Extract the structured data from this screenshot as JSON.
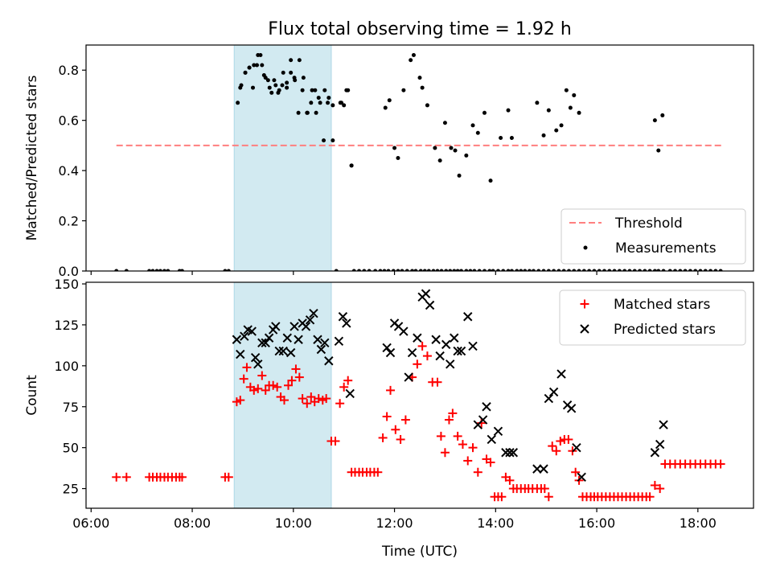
{
  "figure": {
    "title": "Flux total observing time = 1.92 h"
  },
  "chart_data": [
    {
      "type": "scatter",
      "panel": "top",
      "xlabel": "",
      "ylabel": "Matched/Predicted stars",
      "xlim": [
        5.9,
        19.1
      ],
      "ylim": [
        0,
        0.9
      ],
      "yticks": [
        0.0,
        0.2,
        0.4,
        0.6,
        0.8
      ],
      "ytick_labels": [
        "0.0",
        "0.2",
        "0.4",
        "0.6",
        "0.8"
      ],
      "xticks": [
        6,
        8,
        10,
        12,
        14,
        16,
        18
      ],
      "highlight_span": {
        "x0": 8.83,
        "x1": 10.75,
        "color": "#add8e6"
      },
      "threshold": {
        "name": "Threshold",
        "y": 0.5,
        "x0": 6.5,
        "x1": 18.5,
        "color": "#ff7f7f"
      },
      "legend": {
        "placement": "lower-right",
        "entries": [
          "Threshold",
          "Measurements"
        ]
      },
      "series": [
        {
          "name": "Measurements",
          "marker": "dot",
          "color": "#000000",
          "x": [
            6.5,
            6.7,
            7.15,
            7.22,
            7.3,
            7.37,
            7.45,
            7.52,
            7.75,
            7.8,
            8.65,
            8.72,
            8.9,
            8.97,
            9.05,
            9.13,
            9.22,
            9.3,
            9.38,
            9.45,
            9.53,
            9.62,
            9.7,
            9.78,
            9.87,
            9.95,
            10.03,
            10.12,
            10.2,
            10.28,
            10.37,
            10.45,
            10.53,
            10.62,
            10.7,
            10.78,
            10.85,
            10.93,
            11.0,
            11.08,
            11.15,
            11.2,
            11.3,
            11.4,
            11.5,
            11.62,
            11.72,
            11.8,
            11.88,
            11.98,
            12.07,
            12.15,
            12.25,
            12.35,
            12.42,
            12.52,
            12.6,
            12.68,
            12.77,
            12.85,
            12.93,
            13.02,
            13.1,
            13.18,
            13.25,
            13.32,
            13.42,
            13.5,
            13.58,
            13.68,
            13.78,
            13.88,
            13.95,
            14.05,
            14.15,
            14.25,
            14.32,
            14.42,
            14.5,
            14.58,
            14.67,
            14.75,
            14.85,
            14.95,
            15.05,
            15.15,
            15.25,
            15.35,
            15.45,
            15.55,
            15.65,
            15.75,
            15.85,
            15.95,
            16.05,
            16.15,
            16.25,
            16.35,
            16.45,
            16.55,
            16.65,
            16.75,
            16.85,
            16.95,
            17.05,
            17.15,
            17.22,
            17.32,
            17.45,
            17.55,
            17.65,
            17.75,
            17.85,
            17.95,
            18.05,
            18.15,
            18.25,
            18.35,
            18.45,
            8.95,
            9.05,
            9.13,
            9.2,
            9.28,
            9.35,
            9.42,
            9.5,
            9.57,
            9.65,
            9.72,
            9.8,
            9.87,
            9.95,
            10.02,
            10.1,
            10.18,
            10.27,
            10.35,
            10.43,
            10.5,
            10.6,
            10.68,
            10.78,
            10.95,
            11.05,
            11.15,
            11.82,
            11.9,
            12.0,
            12.07,
            12.18,
            12.32,
            12.38,
            12.5,
            12.55,
            12.65,
            12.8,
            12.9,
            13.0,
            13.12,
            13.2,
            13.28,
            13.42,
            13.55,
            13.65,
            13.78,
            13.9,
            14.1,
            14.25,
            14.32,
            14.82,
            14.95,
            15.05,
            15.2,
            15.3,
            15.4,
            15.48,
            15.55,
            15.65,
            17.15,
            17.22,
            17.3
          ],
          "y": [
            0,
            0,
            0,
            0,
            0,
            0,
            0,
            0,
            0,
            0,
            0,
            0,
            0.67,
            0.74,
            0.79,
            0.81,
            0.82,
            0.86,
            0.82,
            0.77,
            0.73,
            0.76,
            0.71,
            0.74,
            0.73,
            0.79,
            0.76,
            0.84,
            0.77,
            0.63,
            0.72,
            0.63,
            0.67,
            0.72,
            0.69,
            0.52,
            0,
            0.67,
            0.66,
            0.72,
            0.42,
            0,
            0,
            0,
            0,
            0,
            0,
            0,
            0,
            0,
            0,
            0,
            0,
            0,
            0,
            0,
            0,
            0,
            0,
            0,
            0,
            0,
            0,
            0,
            0,
            0,
            0,
            0,
            0,
            0,
            0,
            0,
            0,
            0,
            0,
            0,
            0,
            0,
            0,
            0,
            0,
            0,
            0,
            0,
            0,
            0,
            0,
            0,
            0,
            0,
            0,
            0,
            0,
            0,
            0,
            0,
            0,
            0,
            0,
            0,
            0,
            0,
            0,
            0,
            0,
            0,
            0,
            0,
            0,
            0,
            0,
            0,
            0,
            0,
            0,
            0,
            0,
            0,
            0,
            0.73,
            0.79,
            0.81,
            0.73,
            0.82,
            0.86,
            0.78,
            0.76,
            0.71,
            0.74,
            0.72,
            0.79,
            0.75,
            0.84,
            0.77,
            0.63,
            0.72,
            0.63,
            0.67,
            0.72,
            0.69,
            0.52,
            0.67,
            0.66,
            0.67,
            0.72,
            0.42,
            0.65,
            0.68,
            0.49,
            0.45,
            0.72,
            0.84,
            0.86,
            0.77,
            0.73,
            0.66,
            0.49,
            0.44,
            0.59,
            0.49,
            0.48,
            0.38,
            0.46,
            0.58,
            0.55,
            0.63,
            0.36,
            0.53,
            0.64,
            0.53,
            0.67,
            0.54,
            0.64,
            0.56,
            0.58,
            0.72,
            0.65,
            0.7,
            0.63,
            0.6,
            0.48,
            0.62
          ]
        }
      ]
    },
    {
      "type": "scatter",
      "panel": "bottom",
      "xlabel": "Time (UTC)",
      "ylabel": "Count",
      "xlim": [
        5.9,
        19.1
      ],
      "ylim": [
        13,
        151
      ],
      "yticks": [
        25,
        50,
        75,
        100,
        125,
        150
      ],
      "ytick_labels": [
        "25",
        "50",
        "75",
        "100",
        "125",
        "150"
      ],
      "xticks": [
        6,
        8,
        10,
        12,
        14,
        16,
        18
      ],
      "xtick_labels": [
        "06:00",
        "08:00",
        "10:00",
        "12:00",
        "14:00",
        "16:00",
        "18:00"
      ],
      "highlight_span": {
        "x0": 8.83,
        "x1": 10.75,
        "color": "#add8e6"
      },
      "legend": {
        "placement": "upper-right",
        "entries": [
          "Matched stars",
          "Predicted stars"
        ]
      },
      "series": [
        {
          "name": "Matched stars",
          "marker": "plus",
          "color": "#ff0000",
          "x": [
            6.5,
            6.7,
            7.15,
            7.22,
            7.3,
            7.37,
            7.45,
            7.52,
            7.6,
            7.68,
            7.75,
            7.8,
            8.65,
            8.72,
            8.88,
            8.95,
            9.02,
            9.08,
            9.15,
            9.22,
            9.3,
            9.38,
            9.45,
            9.52,
            9.6,
            9.68,
            9.75,
            9.82,
            9.9,
            9.97,
            10.05,
            10.12,
            10.18,
            10.27,
            10.35,
            10.42,
            10.5,
            10.58,
            10.65,
            10.75,
            10.83,
            10.92,
            11.0,
            11.08,
            11.15,
            11.22,
            11.3,
            11.37,
            11.45,
            11.52,
            11.6,
            11.67,
            11.77,
            11.85,
            11.92,
            12.02,
            12.12,
            12.22,
            12.35,
            12.45,
            12.55,
            12.65,
            12.75,
            12.85,
            12.92,
            13.0,
            13.08,
            13.15,
            13.25,
            13.35,
            13.45,
            13.55,
            13.65,
            13.72,
            13.82,
            13.9,
            13.98,
            14.05,
            14.12,
            14.2,
            14.28,
            14.35,
            14.42,
            14.5,
            14.58,
            14.65,
            14.73,
            14.82,
            14.9,
            14.97,
            15.05,
            15.12,
            15.2,
            15.28,
            15.36,
            15.44,
            15.52,
            15.58,
            15.65,
            15.72,
            15.8,
            15.88,
            15.95,
            16.02,
            16.1,
            16.18,
            16.26,
            16.34,
            16.42,
            16.5,
            16.58,
            16.66,
            16.74,
            16.82,
            16.9,
            16.98,
            17.05,
            17.15,
            17.25,
            17.35,
            17.45,
            17.55,
            17.65,
            17.75,
            17.85,
            17.95,
            18.05,
            18.15,
            18.25,
            18.35,
            18.45
          ],
          "y": [
            32,
            32,
            32,
            32,
            32,
            32,
            32,
            32,
            32,
            32,
            32,
            32,
            32,
            32,
            78,
            79,
            92,
            99,
            87,
            85,
            86,
            94,
            85,
            88,
            88,
            87,
            81,
            79,
            88,
            91,
            98,
            93,
            80,
            77,
            81,
            78,
            80,
            79,
            80,
            54,
            54,
            77,
            87,
            91,
            35,
            35,
            35,
            35,
            35,
            35,
            35,
            35,
            56,
            69,
            85,
            61,
            55,
            67,
            93,
            101,
            112,
            106,
            90,
            90,
            57,
            47,
            67,
            71,
            57,
            52,
            42,
            50,
            35,
            65,
            43,
            41,
            20,
            20,
            20,
            32,
            30,
            25,
            25,
            25,
            25,
            25,
            25,
            25,
            25,
            25,
            20,
            51,
            48,
            54,
            55,
            55,
            48,
            35,
            30,
            20,
            20,
            20,
            20,
            20,
            20,
            20,
            20,
            20,
            20,
            20,
            20,
            20,
            20,
            20,
            20,
            20,
            20,
            27,
            25,
            40,
            40,
            40,
            40,
            40,
            40,
            40,
            40,
            40,
            40,
            40,
            40
          ]
        },
        {
          "name": "Predicted stars",
          "marker": "x",
          "color": "#000000",
          "x": [
            8.88,
            8.95,
            9.03,
            9.1,
            9.18,
            9.25,
            9.3,
            9.38,
            9.45,
            9.52,
            9.6,
            9.65,
            9.72,
            9.8,
            9.88,
            9.95,
            10.02,
            10.1,
            10.18,
            10.25,
            10.33,
            10.4,
            10.48,
            10.55,
            10.62,
            10.7,
            10.9,
            10.98,
            11.05,
            11.12,
            11.85,
            11.92,
            12.0,
            12.08,
            12.18,
            12.28,
            12.35,
            12.45,
            12.55,
            12.62,
            12.7,
            12.82,
            12.9,
            13.02,
            13.1,
            13.18,
            13.25,
            13.32,
            13.45,
            13.55,
            13.65,
            13.75,
            13.82,
            13.92,
            14.05,
            14.2,
            14.28,
            14.35,
            14.82,
            14.95,
            15.05,
            15.15,
            15.3,
            15.42,
            15.5,
            15.6,
            15.7,
            17.15,
            17.25,
            17.32
          ],
          "y": [
            116,
            107,
            118,
            122,
            121,
            105,
            101,
            114,
            114,
            117,
            122,
            124,
            109,
            109,
            117,
            108,
            124,
            116,
            126,
            124,
            128,
            132,
            116,
            110,
            114,
            103,
            115,
            130,
            126,
            83,
            111,
            108,
            126,
            124,
            121,
            93,
            108,
            117,
            142,
            144,
            137,
            116,
            106,
            113,
            101,
            117,
            109,
            109,
            130,
            112,
            64,
            67,
            75,
            55,
            60,
            47,
            47,
            47,
            37,
            37,
            80,
            84,
            95,
            76,
            74,
            50,
            32,
            47,
            52,
            64
          ]
        }
      ]
    }
  ]
}
